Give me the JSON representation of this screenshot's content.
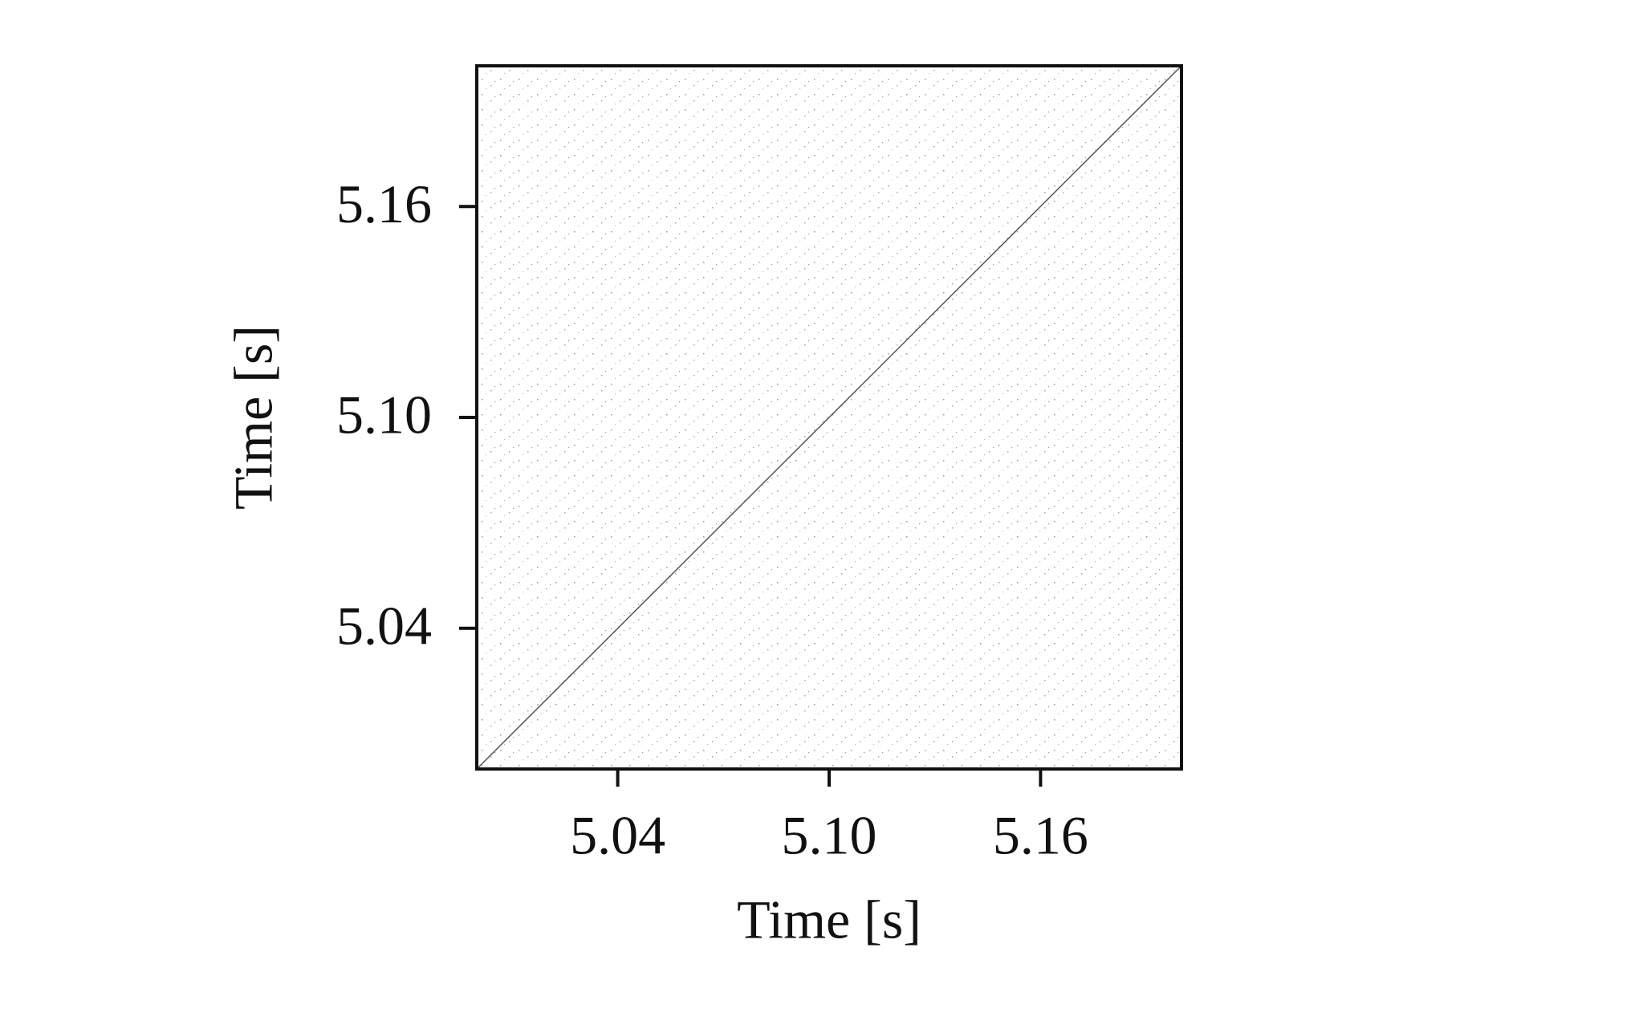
{
  "chart_data": {
    "type": "recurrence",
    "xlabel": "Time [s]",
    "ylabel": "Time [s]",
    "xlim": [
      5.0,
      5.2
    ],
    "ylim": [
      5.0,
      5.2
    ],
    "xticks": [
      5.04,
      {
        "value": 5.1,
        "label": "5.10"
      },
      5.16
    ],
    "yticks": [
      5.04,
      {
        "value": 5.1,
        "label": "5.10"
      },
      5.16
    ],
    "series": [
      {
        "color": "#555555",
        "x": [
          5.0,
          5.2
        ],
        "values": [
          5.0,
          5.2
        ]
      }
    ]
  }
}
